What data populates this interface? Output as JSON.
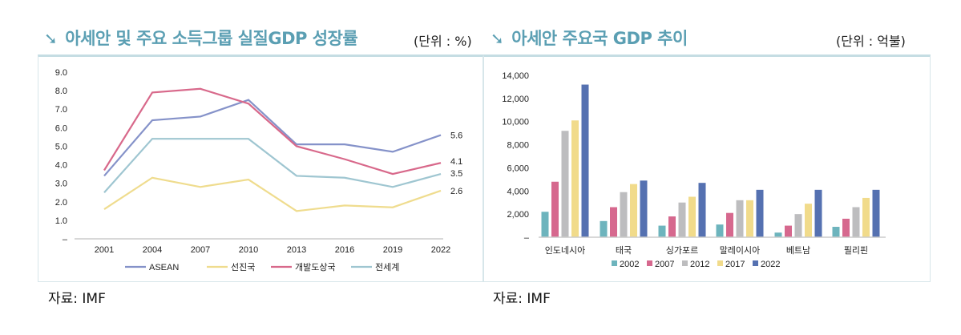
{
  "left": {
    "title": "아세안 및 주요 소득그룹 실질GDP 성장률",
    "unit": "(단위 : %)",
    "source": "자료: IMF",
    "icon": "arrow-down-right-icon"
  },
  "right": {
    "title": "아세안 주요국 GDP 추이",
    "unit": "(단위 : 억불)",
    "source": "자료: IMF",
    "icon": "arrow-down-right-icon"
  },
  "chart_data": [
    {
      "type": "line",
      "x": [
        "2001",
        "2004",
        "2007",
        "2010",
        "2013",
        "2016",
        "2019",
        "2022"
      ],
      "ylim": [
        0,
        9
      ],
      "yticks": [
        "–",
        "1.0",
        "2.0",
        "3.0",
        "4.0",
        "5.0",
        "6.0",
        "7.0",
        "8.0",
        "9.0"
      ],
      "legend": "bottom",
      "series": [
        {
          "name": "ASEAN",
          "color": "#8592c9",
          "values": [
            3.4,
            6.4,
            6.6,
            7.5,
            5.1,
            5.1,
            4.7,
            5.6
          ],
          "end_label": "5.6"
        },
        {
          "name": "선진국",
          "color": "#efdc8e",
          "values": [
            1.6,
            3.3,
            2.8,
            3.2,
            1.5,
            1.8,
            1.7,
            2.6
          ],
          "end_label": "2.6"
        },
        {
          "name": "개발도상국",
          "color": "#d8698b",
          "values": [
            3.7,
            7.9,
            8.1,
            7.3,
            5.0,
            4.3,
            3.5,
            4.1
          ],
          "end_label": "4.1"
        },
        {
          "name": "전세계",
          "color": "#9fc6d1",
          "values": [
            2.5,
            5.4,
            5.4,
            5.4,
            3.4,
            3.3,
            2.8,
            3.5
          ],
          "end_label": "3.5"
        }
      ]
    },
    {
      "type": "bar",
      "categories": [
        "인도네시아",
        "태국",
        "싱가포르",
        "말레이시아",
        "베트남",
        "필리핀"
      ],
      "ylim": [
        0,
        14000
      ],
      "yticks": [
        "–",
        "2,000",
        "4,000",
        "6,000",
        "8,000",
        "10,000",
        "12,000",
        "14,000"
      ],
      "legend": "bottom",
      "series": [
        {
          "name": "2002",
          "color": "#6db4bd",
          "values": [
            2200,
            1400,
            1000,
            1100,
            400,
            900
          ]
        },
        {
          "name": "2007",
          "color": "#d6688e",
          "values": [
            4800,
            2600,
            1800,
            2100,
            1000,
            1600
          ]
        },
        {
          "name": "2012",
          "color": "#bdbdbf",
          "values": [
            9200,
            3900,
            3000,
            3200,
            2000,
            2600
          ]
        },
        {
          "name": "2017",
          "color": "#f1db8b",
          "values": [
            10100,
            4600,
            3500,
            3200,
            2900,
            3400
          ]
        },
        {
          "name": "2022",
          "color": "#5571b1",
          "values": [
            13200,
            4900,
            4700,
            4100,
            4100,
            4100
          ]
        }
      ]
    }
  ]
}
